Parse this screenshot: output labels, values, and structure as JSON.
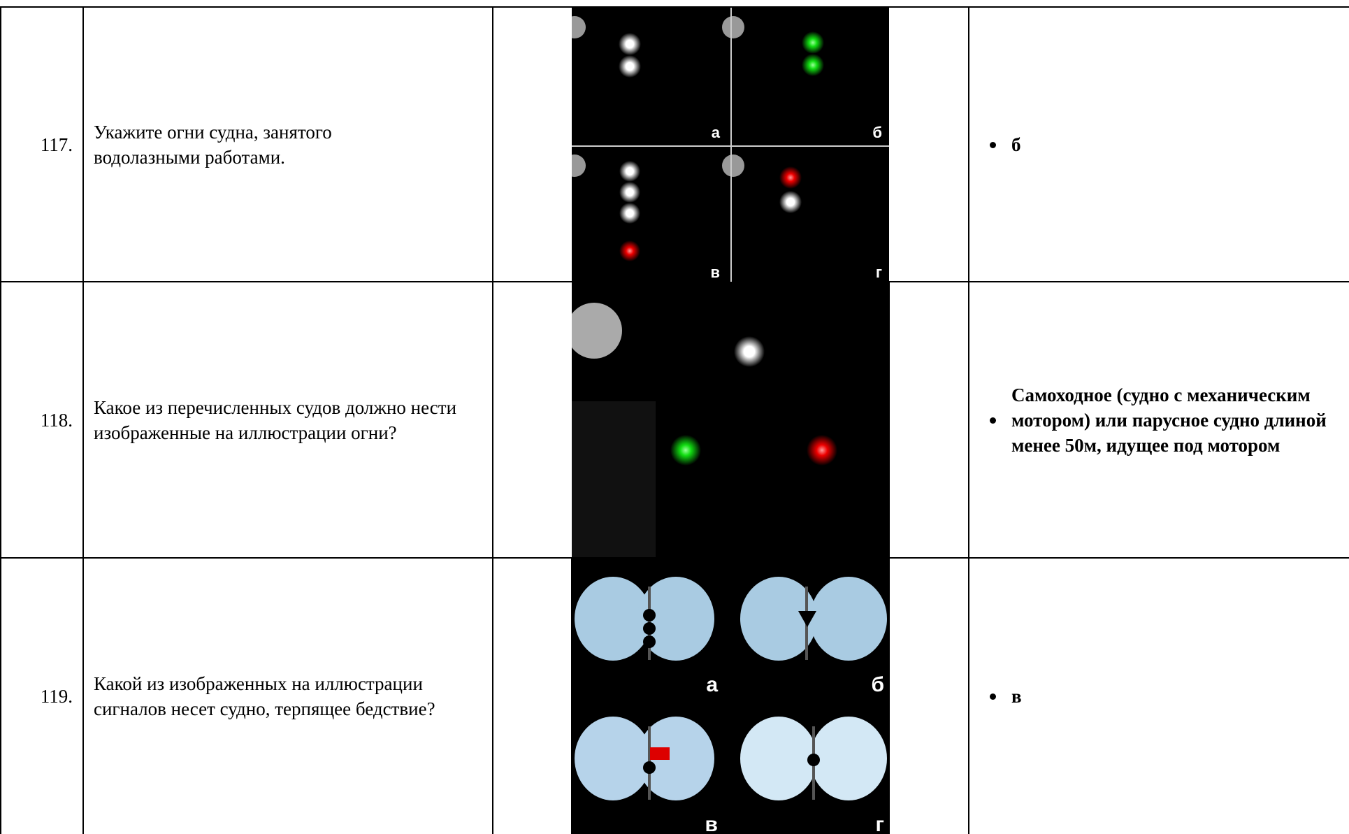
{
  "rows": [
    {
      "number": "117.",
      "question": "Укажите огни судна, занятого водолазными работами.",
      "answer": "б",
      "image_labels": [
        "а",
        "б",
        "в",
        "г"
      ]
    },
    {
      "number": "118.",
      "question": "Какое из перечисленных судов должно нести изображенные на иллюстрации огни?",
      "answer": "Самоходное (судно с механическим мотором) или парусное судно длиной менее 50м, идущее под мотором"
    },
    {
      "number": "119.",
      "question": "Какой из изображенных на иллюстрации сигналов несет судно, терпящее бедствие?",
      "answer": "в",
      "image_labels": [
        "а",
        "б",
        "в",
        "г"
      ]
    }
  ]
}
